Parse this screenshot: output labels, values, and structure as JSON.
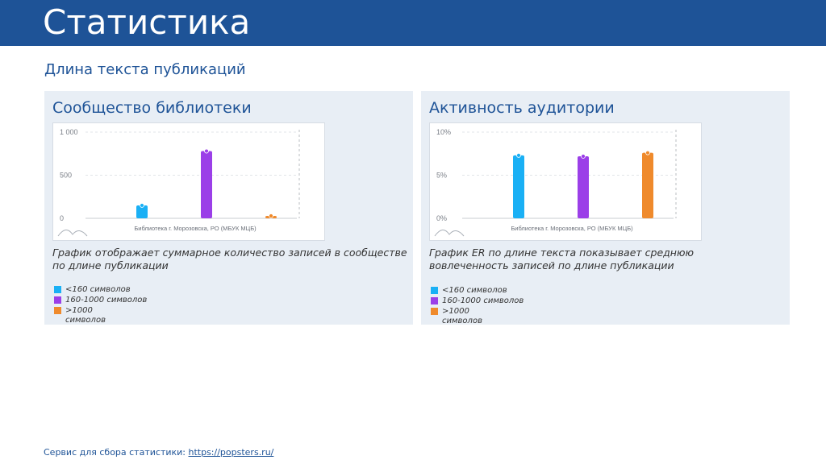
{
  "header": {
    "title": "Статистика"
  },
  "section": {
    "title": "Длина текста публикаций"
  },
  "panels": [
    {
      "title": "Сообщество библиотеки",
      "description_lines": [
        "График отображает суммарное количество записей в сообществе",
        "по длине публикации"
      ],
      "legend": [
        "<160 символов",
        "160-1000 символов",
        ">1000 символов"
      ]
    },
    {
      "title": "Активность аудитории",
      "description_lines": [
        "График ER по длине текста показывает среднюю",
        "вовлеченность записей по длине публикации"
      ],
      "legend": [
        "<160 символов",
        "160-1000 символов",
        ">1000 символов"
      ]
    }
  ],
  "colors": {
    "header_bg": "#1e5397",
    "series": [
      "#1ab0f5",
      "#9b3fe8",
      "#ef8a2c"
    ]
  },
  "chart_data": [
    {
      "type": "bar",
      "categories": [
        "<160 символов",
        "160-1000 символов",
        ">1000 символов"
      ],
      "values": [
        150,
        780,
        15
      ],
      "ylim": [
        0,
        1000
      ],
      "yticks": [
        "1 000",
        "500",
        "0"
      ],
      "xlabel": "Библиотека г. Морозовска, РО (МБУК МЦБ)",
      "grid": true
    },
    {
      "type": "bar",
      "categories": [
        "<160 символов",
        "160-1000 символов",
        ">1000 символов"
      ],
      "values": [
        7.3,
        7.2,
        7.6
      ],
      "ylim": [
        0,
        10
      ],
      "yticks": [
        "10%",
        "5%",
        "0%"
      ],
      "xlabel": "Библиотека г. Морозовска, РО (МБУК МЦБ)",
      "grid": true
    }
  ],
  "footer": {
    "text": "Сервис для сбора статистики: ",
    "link": "https://popsters.ru/"
  }
}
